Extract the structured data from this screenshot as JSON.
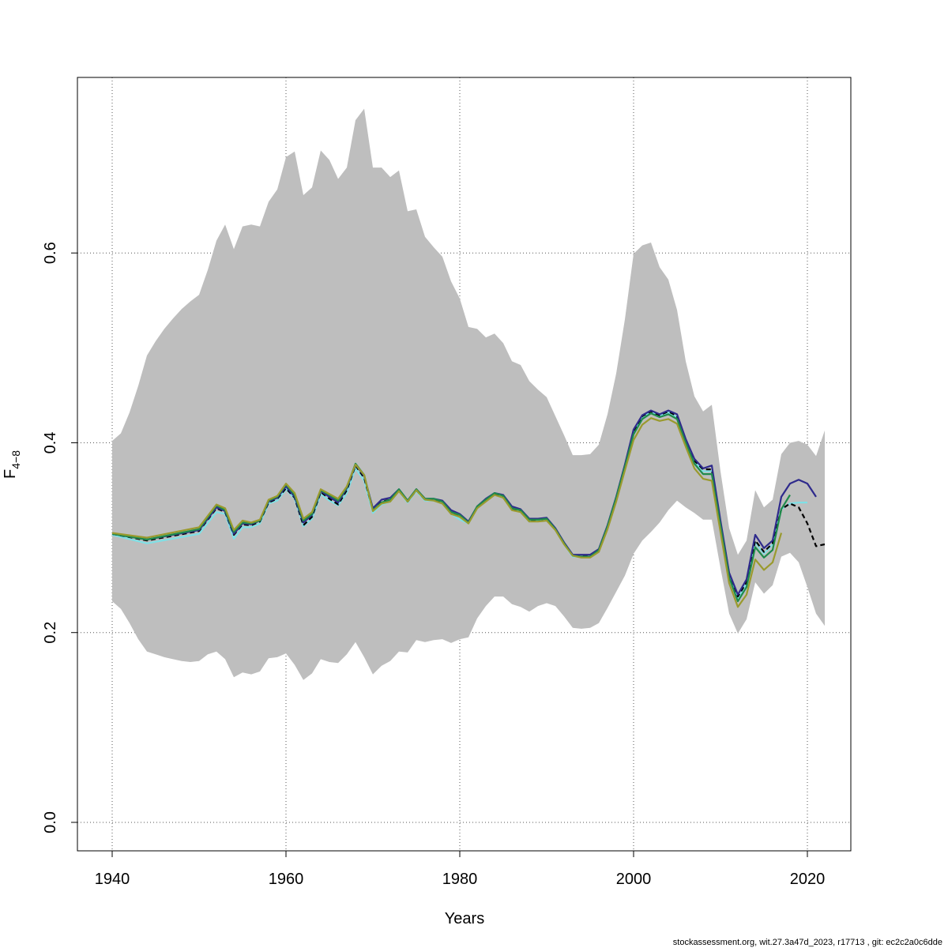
{
  "chart_data": {
    "type": "line",
    "title": "",
    "xlabel": "Years",
    "ylabel": {
      "main": "F",
      "subscript": "4−8"
    },
    "xlim": [
      1936,
      2025
    ],
    "ylim": [
      -0.03,
      0.785
    ],
    "x_ticks": [
      1940,
      1960,
      1980,
      2000,
      2020
    ],
    "y_ticks": [
      0.0,
      0.2,
      0.4,
      0.6
    ],
    "x_tick_labels": [
      "1940",
      "1960",
      "1980",
      "2000",
      "2020"
    ],
    "y_tick_labels": [
      "0.0",
      "0.2",
      "0.4",
      "0.6"
    ],
    "grid": true,
    "grid_style": "dotted",
    "legend": "none",
    "confidence_band": {
      "color": "#bebebe",
      "x": [
        1940,
        1941,
        1942,
        1943,
        1944,
        1945,
        1946,
        1947,
        1948,
        1949,
        1950,
        1951,
        1952,
        1953,
        1954,
        1955,
        1956,
        1957,
        1958,
        1959,
        1960,
        1961,
        1962,
        1963,
        1964,
        1965,
        1966,
        1967,
        1968,
        1969,
        1970,
        1971,
        1972,
        1973,
        1974,
        1975,
        1976,
        1977,
        1978,
        1979,
        1980,
        1981,
        1982,
        1983,
        1984,
        1985,
        1986,
        1987,
        1988,
        1989,
        1990,
        1991,
        1992,
        1993,
        1994,
        1995,
        1996,
        1997,
        1998,
        1999,
        2000,
        2001,
        2002,
        2003,
        2004,
        2005,
        2006,
        2007,
        2008,
        2009,
        2010,
        2011,
        2012,
        2013,
        2014,
        2015,
        2016,
        2017,
        2018,
        2019,
        2020,
        2021,
        2022
      ],
      "upper": [
        0.402,
        0.41,
        0.432,
        0.46,
        0.492,
        0.507,
        0.52,
        0.531,
        0.541,
        0.549,
        0.556,
        0.582,
        0.613,
        0.63,
        0.604,
        0.628,
        0.63,
        0.628,
        0.654,
        0.667,
        0.701,
        0.707,
        0.661,
        0.669,
        0.708,
        0.698,
        0.678,
        0.69,
        0.74,
        0.752,
        0.69,
        0.69,
        0.68,
        0.687,
        0.644,
        0.646,
        0.617,
        0.606,
        0.596,
        0.57,
        0.552,
        0.522,
        0.52,
        0.511,
        0.515,
        0.505,
        0.486,
        0.482,
        0.465,
        0.456,
        0.448,
        0.428,
        0.408,
        0.387,
        0.387,
        0.388,
        0.398,
        0.43,
        0.473,
        0.53,
        0.599,
        0.608,
        0.611,
        0.585,
        0.572,
        0.54,
        0.486,
        0.449,
        0.433,
        0.44,
        0.37,
        0.31,
        0.282,
        0.297,
        0.35,
        0.332,
        0.34,
        0.388,
        0.4,
        0.402,
        0.398,
        0.386,
        0.413
      ],
      "lower": [
        0.233,
        0.225,
        0.21,
        0.193,
        0.18,
        0.177,
        0.174,
        0.172,
        0.17,
        0.169,
        0.17,
        0.177,
        0.18,
        0.172,
        0.153,
        0.158,
        0.156,
        0.159,
        0.173,
        0.174,
        0.178,
        0.166,
        0.15,
        0.157,
        0.172,
        0.169,
        0.168,
        0.177,
        0.19,
        0.174,
        0.156,
        0.165,
        0.17,
        0.18,
        0.179,
        0.192,
        0.19,
        0.192,
        0.193,
        0.189,
        0.193,
        0.195,
        0.215,
        0.228,
        0.238,
        0.238,
        0.23,
        0.227,
        0.222,
        0.228,
        0.231,
        0.228,
        0.217,
        0.205,
        0.204,
        0.205,
        0.21,
        0.226,
        0.243,
        0.26,
        0.283,
        0.297,
        0.306,
        0.316,
        0.329,
        0.339,
        0.332,
        0.326,
        0.319,
        0.319,
        0.268,
        0.22,
        0.199,
        0.214,
        0.253,
        0.241,
        0.25,
        0.28,
        0.284,
        0.274,
        0.248,
        0.22,
        0.207
      ]
    },
    "series": [
      {
        "color": "#7fe0e6",
        "dash": "",
        "x": [
          1940,
          1944,
          1950,
          1952,
          1953,
          1954,
          1955,
          1956,
          1957,
          1958,
          1959,
          1960,
          1961,
          1962,
          1963,
          1964,
          1965,
          1966,
          1967,
          1968,
          1969,
          1970,
          1971,
          1972,
          1973,
          1974,
          1975,
          1976,
          1977,
          1978,
          1979,
          1980,
          1981,
          1982,
          1983,
          1984,
          1985,
          1986,
          1987,
          1988,
          1989,
          1990,
          1991,
          1992,
          1993,
          1994,
          1995,
          1996,
          1997,
          1998,
          1999,
          2000,
          2001,
          2002,
          2003,
          2004,
          2005,
          2006,
          2007,
          2008,
          2009,
          2010,
          2011,
          2012,
          2013,
          2014,
          2015,
          2016,
          2017,
          2018,
          2019,
          2020
        ],
        "y": [
          0.303,
          0.294,
          0.304,
          0.327,
          0.325,
          0.299,
          0.311,
          0.311,
          0.315,
          0.336,
          0.339,
          0.351,
          0.341,
          0.312,
          0.32,
          0.346,
          0.339,
          0.334,
          0.347,
          0.373,
          0.36,
          0.326,
          0.335,
          0.338,
          0.349,
          0.337,
          0.349,
          0.339,
          0.339,
          0.336,
          0.325,
          0.319,
          0.315,
          0.331,
          0.339,
          0.345,
          0.342,
          0.33,
          0.327,
          0.317,
          0.318,
          0.319,
          0.308,
          0.293,
          0.28,
          0.28,
          0.28,
          0.286,
          0.31,
          0.34,
          0.375,
          0.411,
          0.427,
          0.432,
          0.428,
          0.432,
          0.427,
          0.401,
          0.38,
          0.37,
          0.37,
          0.315,
          0.26,
          0.236,
          0.252,
          0.295,
          0.283,
          0.293,
          0.33,
          0.336,
          0.337,
          0.337
        ]
      },
      {
        "color": "#000000",
        "dash": "6,4",
        "x": [
          1940,
          1944,
          1950,
          1952,
          1953,
          1954,
          1955,
          1956,
          1957,
          1958,
          1959,
          1960,
          1961,
          1962,
          1963,
          1964,
          1965,
          1966,
          1967,
          1968,
          1969,
          1970,
          1971,
          1972,
          1973,
          1974,
          1975,
          1976,
          1977,
          1978,
          1979,
          1980,
          1981,
          1982,
          1983,
          1984,
          1985,
          1986,
          1987,
          1988,
          1989,
          1990,
          1991,
          1992,
          1993,
          1994,
          1995,
          1996,
          1997,
          1998,
          1999,
          2000,
          2001,
          2002,
          2003,
          2004,
          2005,
          2006,
          2007,
          2008,
          2009,
          2010,
          2011,
          2012,
          2013,
          2014,
          2015,
          2016,
          2017,
          2018,
          2019,
          2020,
          2021,
          2022
        ],
        "y": [
          0.304,
          0.297,
          0.307,
          0.331,
          0.327,
          0.303,
          0.314,
          0.313,
          0.317,
          0.337,
          0.341,
          0.352,
          0.342,
          0.313,
          0.322,
          0.348,
          0.341,
          0.335,
          0.35,
          0.376,
          0.363,
          0.329,
          0.338,
          0.34,
          0.35,
          0.338,
          0.35,
          0.34,
          0.34,
          0.338,
          0.327,
          0.322,
          0.317,
          0.332,
          0.34,
          0.346,
          0.343,
          0.331,
          0.328,
          0.318,
          0.319,
          0.32,
          0.309,
          0.294,
          0.281,
          0.281,
          0.281,
          0.287,
          0.312,
          0.342,
          0.376,
          0.412,
          0.428,
          0.433,
          0.429,
          0.433,
          0.428,
          0.402,
          0.381,
          0.372,
          0.372,
          0.316,
          0.262,
          0.238,
          0.253,
          0.297,
          0.285,
          0.294,
          0.33,
          0.336,
          0.332,
          0.315,
          0.291,
          0.293
        ]
      },
      {
        "color": "#2e2a8c",
        "dash": "",
        "x": [
          1940,
          1944,
          1950,
          1952,
          1953,
          1954,
          1955,
          1956,
          1957,
          1958,
          1959,
          1960,
          1961,
          1962,
          1963,
          1964,
          1965,
          1966,
          1967,
          1968,
          1969,
          1970,
          1971,
          1972,
          1973,
          1974,
          1975,
          1976,
          1977,
          1978,
          1979,
          1980,
          1981,
          1982,
          1983,
          1984,
          1985,
          1986,
          1987,
          1988,
          1989,
          1990,
          1991,
          1992,
          1993,
          1994,
          1995,
          1996,
          1997,
          1998,
          1999,
          2000,
          2001,
          2002,
          2003,
          2004,
          2005,
          2006,
          2007,
          2008,
          2009,
          2010,
          2011,
          2012,
          2013,
          2014,
          2015,
          2016,
          2017,
          2018,
          2019,
          2020,
          2021
        ],
        "y": [
          0.304,
          0.298,
          0.308,
          0.332,
          0.328,
          0.304,
          0.315,
          0.314,
          0.318,
          0.338,
          0.342,
          0.354,
          0.343,
          0.316,
          0.324,
          0.349,
          0.343,
          0.337,
          0.352,
          0.377,
          0.365,
          0.331,
          0.34,
          0.342,
          0.351,
          0.339,
          0.351,
          0.341,
          0.341,
          0.339,
          0.329,
          0.325,
          0.317,
          0.333,
          0.341,
          0.347,
          0.345,
          0.333,
          0.33,
          0.32,
          0.32,
          0.321,
          0.31,
          0.295,
          0.282,
          0.282,
          0.282,
          0.288,
          0.313,
          0.343,
          0.377,
          0.414,
          0.429,
          0.434,
          0.43,
          0.434,
          0.43,
          0.404,
          0.383,
          0.373,
          0.376,
          0.318,
          0.263,
          0.24,
          0.256,
          0.303,
          0.289,
          0.297,
          0.343,
          0.357,
          0.361,
          0.357,
          0.343
        ]
      },
      {
        "color": "#1f8b4c",
        "dash": "",
        "x": [
          1940,
          1944,
          1950,
          1952,
          1953,
          1954,
          1955,
          1956,
          1957,
          1958,
          1959,
          1960,
          1961,
          1962,
          1963,
          1964,
          1965,
          1966,
          1967,
          1968,
          1969,
          1970,
          1971,
          1972,
          1973,
          1974,
          1975,
          1976,
          1977,
          1978,
          1979,
          1980,
          1981,
          1982,
          1983,
          1984,
          1985,
          1986,
          1987,
          1988,
          1989,
          1990,
          1991,
          1992,
          1993,
          1994,
          1995,
          1996,
          1997,
          1998,
          1999,
          2000,
          2001,
          2002,
          2003,
          2004,
          2005,
          2006,
          2007,
          2008,
          2009,
          2010,
          2011,
          2012,
          2013,
          2014,
          2015,
          2016,
          2017,
          2018
        ],
        "y": [
          0.304,
          0.298,
          0.309,
          0.334,
          0.329,
          0.306,
          0.316,
          0.315,
          0.318,
          0.339,
          0.343,
          0.356,
          0.345,
          0.318,
          0.325,
          0.35,
          0.345,
          0.339,
          0.353,
          0.378,
          0.366,
          0.329,
          0.337,
          0.34,
          0.351,
          0.339,
          0.351,
          0.341,
          0.341,
          0.338,
          0.327,
          0.324,
          0.316,
          0.333,
          0.34,
          0.347,
          0.344,
          0.331,
          0.329,
          0.319,
          0.319,
          0.32,
          0.309,
          0.294,
          0.281,
          0.28,
          0.28,
          0.287,
          0.312,
          0.342,
          0.375,
          0.409,
          0.425,
          0.431,
          0.427,
          0.43,
          0.425,
          0.4,
          0.378,
          0.367,
          0.367,
          0.313,
          0.258,
          0.233,
          0.248,
          0.29,
          0.279,
          0.287,
          0.33,
          0.345
        ]
      },
      {
        "color": "#9a9a2e",
        "dash": "",
        "x": [
          1940,
          1944,
          1950,
          1952,
          1953,
          1954,
          1955,
          1956,
          1957,
          1958,
          1959,
          1960,
          1961,
          1962,
          1963,
          1964,
          1965,
          1966,
          1967,
          1968,
          1969,
          1970,
          1971,
          1972,
          1973,
          1974,
          1975,
          1976,
          1977,
          1978,
          1979,
          1980,
          1981,
          1982,
          1983,
          1984,
          1985,
          1986,
          1987,
          1988,
          1989,
          1990,
          1991,
          1992,
          1993,
          1994,
          1995,
          1996,
          1997,
          1998,
          1999,
          2000,
          2001,
          2002,
          2003,
          2004,
          2005,
          2006,
          2007,
          2008,
          2009,
          2010,
          2011,
          2012,
          2013,
          2014,
          2015,
          2016,
          2017
        ],
        "y": [
          0.305,
          0.3,
          0.311,
          0.335,
          0.331,
          0.308,
          0.318,
          0.316,
          0.319,
          0.34,
          0.344,
          0.357,
          0.347,
          0.32,
          0.327,
          0.351,
          0.346,
          0.341,
          0.354,
          0.377,
          0.366,
          0.328,
          0.336,
          0.338,
          0.349,
          0.338,
          0.35,
          0.34,
          0.339,
          0.336,
          0.325,
          0.322,
          0.315,
          0.331,
          0.338,
          0.345,
          0.342,
          0.329,
          0.327,
          0.317,
          0.317,
          0.318,
          0.308,
          0.293,
          0.281,
          0.279,
          0.279,
          0.285,
          0.309,
          0.338,
          0.371,
          0.403,
          0.419,
          0.426,
          0.423,
          0.425,
          0.42,
          0.396,
          0.373,
          0.362,
          0.36,
          0.306,
          0.252,
          0.227,
          0.24,
          0.277,
          0.266,
          0.274,
          0.305
        ]
      }
    ]
  },
  "footer": {
    "text": "stockassessment.org, wit.27.3a47d_2023, r17713 , git: ec2c2a0c6dde"
  }
}
